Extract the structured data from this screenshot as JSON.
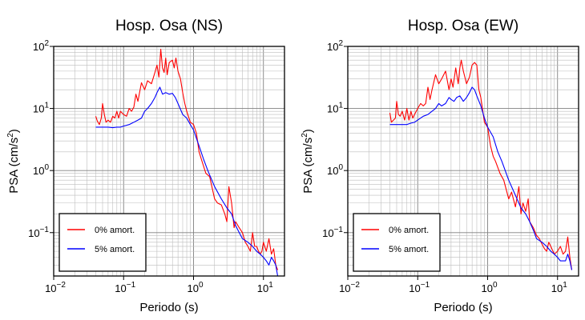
{
  "chart_data": [
    {
      "type": "line",
      "title": "Hosp. Osa (NS)",
      "xlabel": "Periodo (s)",
      "ylabel": "PSA (cm/s²)",
      "xscale": "log",
      "yscale": "log",
      "xlim": [
        0.01,
        20
      ],
      "ylim": [
        0.02,
        100
      ],
      "grid": true,
      "legend_position": "bottom-left",
      "series": [
        {
          "name": "0% amort.",
          "color": "#ff0000",
          "x": [
            0.04,
            0.042,
            0.045,
            0.048,
            0.05,
            0.053,
            0.056,
            0.06,
            0.065,
            0.07,
            0.075,
            0.08,
            0.085,
            0.09,
            0.1,
            0.11,
            0.12,
            0.13,
            0.14,
            0.15,
            0.16,
            0.18,
            0.2,
            0.22,
            0.25,
            0.28,
            0.3,
            0.32,
            0.34,
            0.36,
            0.38,
            0.4,
            0.42,
            0.45,
            0.5,
            0.53,
            0.56,
            0.6,
            0.65,
            0.7,
            0.75,
            0.8,
            0.9,
            1.0,
            1.1,
            1.2,
            1.3,
            1.5,
            1.7,
            2.0,
            2.2,
            2.5,
            2.8,
            3.0,
            3.2,
            3.5,
            3.8,
            4.0,
            4.5,
            5.0,
            5.5,
            6.0,
            6.5,
            7.0,
            7.5,
            8.0,
            8.5,
            9.0,
            9.5,
            10.0,
            11.0,
            12.0,
            13.0,
            14.0,
            15.0,
            16.0
          ],
          "y": [
            7.5,
            6.3,
            5.5,
            7.0,
            12.0,
            8.0,
            6.0,
            6.5,
            6.0,
            7.5,
            7.0,
            9.0,
            7.0,
            9.0,
            8.0,
            7.5,
            10.0,
            9.0,
            10.5,
            17.0,
            13.0,
            26.0,
            20.0,
            28.0,
            25.0,
            38.0,
            50.0,
            32.0,
            90.0,
            45.0,
            38.0,
            65.0,
            35.0,
            55.0,
            60.0,
            45.0,
            65.0,
            40.0,
            30.0,
            18.0,
            12.0,
            9.0,
            6.0,
            5.5,
            4.0,
            2.0,
            1.5,
            0.9,
            0.8,
            0.35,
            0.3,
            0.28,
            0.2,
            0.15,
            0.55,
            0.3,
            0.12,
            0.15,
            0.12,
            0.1,
            0.07,
            0.06,
            0.05,
            0.1,
            0.06,
            0.06,
            0.05,
            0.045,
            0.05,
            0.07,
            0.05,
            0.08,
            0.045,
            0.055,
            0.03,
            0.025
          ]
        },
        {
          "name": "5% amort.",
          "color": "#0000ff",
          "x": [
            0.04,
            0.05,
            0.06,
            0.07,
            0.08,
            0.09,
            0.1,
            0.12,
            0.14,
            0.16,
            0.18,
            0.2,
            0.22,
            0.25,
            0.28,
            0.3,
            0.33,
            0.36,
            0.4,
            0.45,
            0.5,
            0.55,
            0.6,
            0.7,
            0.8,
            0.9,
            1.0,
            1.2,
            1.4,
            1.6,
            2.0,
            2.5,
            3.0,
            3.5,
            4.0,
            4.5,
            5.0,
            6.0,
            7.0,
            8.0,
            9.0,
            10.0,
            11.0,
            12.0,
            13.0,
            14.0,
            15.0,
            16.0
          ],
          "y": [
            5.0,
            5.0,
            5.0,
            4.9,
            5.0,
            5.0,
            5.2,
            5.5,
            6.0,
            6.5,
            7.0,
            9.0,
            10.0,
            12.0,
            15.0,
            18.0,
            22.0,
            17.0,
            18.0,
            17.0,
            17.5,
            15.0,
            12.0,
            8.0,
            7.0,
            5.5,
            4.5,
            2.5,
            1.5,
            1.0,
            0.55,
            0.35,
            0.25,
            0.2,
            0.13,
            0.1,
            0.08,
            0.07,
            0.06,
            0.05,
            0.045,
            0.04,
            0.035,
            0.03,
            0.04,
            0.035,
            0.03,
            0.02
          ]
        }
      ]
    },
    {
      "type": "line",
      "title": "Hosp. Osa (EW)",
      "xlabel": "Periodo (s)",
      "ylabel": "PSA (cm/s²)",
      "xscale": "log",
      "yscale": "log",
      "xlim": [
        0.01,
        20
      ],
      "ylim": [
        0.02,
        100
      ],
      "grid": true,
      "legend_position": "bottom-left",
      "series": [
        {
          "name": "0% amort.",
          "color": "#ff0000",
          "x": [
            0.04,
            0.042,
            0.045,
            0.048,
            0.05,
            0.053,
            0.056,
            0.06,
            0.065,
            0.07,
            0.075,
            0.08,
            0.085,
            0.09,
            0.1,
            0.11,
            0.12,
            0.13,
            0.14,
            0.15,
            0.16,
            0.18,
            0.2,
            0.22,
            0.25,
            0.28,
            0.3,
            0.32,
            0.35,
            0.38,
            0.4,
            0.42,
            0.45,
            0.5,
            0.55,
            0.6,
            0.65,
            0.7,
            0.75,
            0.8,
            0.9,
            1.0,
            1.1,
            1.2,
            1.3,
            1.5,
            1.7,
            2.0,
            2.2,
            2.5,
            2.8,
            3.0,
            3.2,
            3.5,
            3.8,
            4.0,
            4.5,
            5.0,
            5.5,
            6.0,
            6.5,
            7.0,
            7.5,
            8.0,
            9.0,
            10.0,
            11.0,
            12.0,
            13.0,
            14.0,
            15.0,
            16.0
          ],
          "y": [
            8.5,
            6.0,
            6.5,
            7.0,
            13.0,
            8.0,
            7.5,
            9.0,
            6.5,
            10.0,
            6.5,
            9.0,
            7.0,
            8.0,
            10.0,
            12.0,
            11.0,
            12.0,
            22.0,
            14.0,
            20.0,
            35.0,
            25.0,
            30.0,
            40.0,
            20.0,
            30.0,
            22.0,
            45.0,
            25.0,
            45.0,
            60.0,
            40.0,
            25.0,
            32.0,
            50.0,
            55.0,
            50.0,
            20.0,
            15.0,
            6.0,
            5.0,
            2.5,
            1.7,
            1.4,
            0.9,
            0.7,
            0.35,
            0.45,
            0.26,
            0.55,
            0.2,
            0.3,
            0.22,
            0.35,
            0.15,
            0.12,
            0.09,
            0.08,
            0.065,
            0.055,
            0.05,
            0.07,
            0.06,
            0.045,
            0.05,
            0.06,
            0.045,
            0.05,
            0.085,
            0.04,
            0.025
          ]
        },
        {
          "name": "5% amort.",
          "color": "#0000ff",
          "x": [
            0.04,
            0.05,
            0.06,
            0.07,
            0.08,
            0.09,
            0.1,
            0.12,
            0.14,
            0.16,
            0.18,
            0.2,
            0.22,
            0.25,
            0.28,
            0.3,
            0.33,
            0.36,
            0.4,
            0.45,
            0.5,
            0.55,
            0.6,
            0.65,
            0.7,
            0.8,
            0.9,
            1.0,
            1.2,
            1.4,
            1.6,
            2.0,
            2.5,
            3.0,
            3.5,
            4.0,
            4.5,
            5.0,
            6.0,
            7.0,
            8.0,
            9.0,
            10.0,
            11.0,
            12.0,
            13.0,
            14.0,
            15.0,
            16.0
          ],
          "y": [
            5.5,
            5.5,
            5.5,
            5.5,
            5.8,
            6.0,
            6.5,
            7.5,
            8.0,
            9.0,
            10.0,
            12.0,
            11.0,
            12.0,
            15.0,
            14.0,
            13.0,
            15.0,
            16.0,
            13.0,
            15.0,
            18.0,
            22.0,
            20.0,
            16.0,
            11.0,
            7.0,
            5.0,
            3.5,
            2.0,
            1.4,
            0.7,
            0.4,
            0.25,
            0.2,
            0.15,
            0.11,
            0.08,
            0.07,
            0.06,
            0.05,
            0.045,
            0.04,
            0.035,
            0.035,
            0.035,
            0.045,
            0.035,
            0.025
          ]
        }
      ]
    }
  ],
  "axis_ticks": {
    "x": [
      {
        "base": "10",
        "exp": "−2",
        "value": 0.01
      },
      {
        "base": "10",
        "exp": "−1",
        "value": 0.1
      },
      {
        "base": "10",
        "exp": "0",
        "value": 1
      },
      {
        "base": "10",
        "exp": "1",
        "value": 10
      }
    ],
    "y": [
      {
        "base": "10",
        "exp": "−1",
        "value": 0.1
      },
      {
        "base": "10",
        "exp": "0",
        "value": 1
      },
      {
        "base": "10",
        "exp": "1",
        "value": 10
      },
      {
        "base": "10",
        "exp": "2",
        "value": 100
      }
    ]
  },
  "colors": {
    "frame": "#000000",
    "grid_major": "#808080",
    "grid_minor": "#bdbdbd",
    "background": "#ffffff"
  }
}
